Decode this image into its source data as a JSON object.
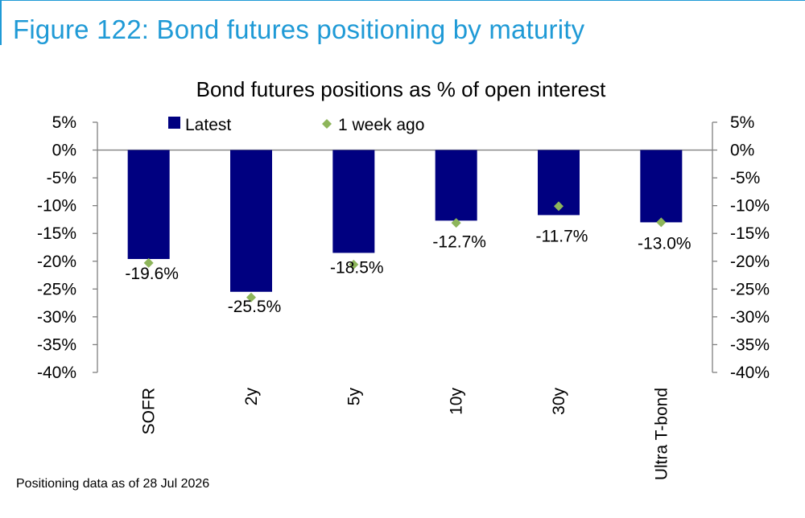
{
  "figure_title": "Figure 122: Bond futures positioning by maturity",
  "footnote": "Positioning data as of 28 Jul 2026",
  "colors": {
    "accent": "#1f9ad6",
    "latest": "#000080",
    "week_ago": "#8db55a"
  },
  "chart_data": {
    "type": "bar",
    "title": "Bond futures positions as % of open interest",
    "categories": [
      "SOFR",
      "2y",
      "5y",
      "10y",
      "30y",
      "Ultra T-bond"
    ],
    "series": [
      {
        "name": "Latest",
        "type": "bar",
        "values": [
          -19.6,
          -25.5,
          -18.5,
          -12.7,
          -11.7,
          -13.0
        ]
      },
      {
        "name": "1 week ago",
        "type": "scatter",
        "marker": "diamond",
        "values": [
          -20.3,
          -26.5,
          -20.6,
          -13.1,
          -10.1,
          -13.0
        ]
      }
    ],
    "data_labels": [
      "-19.6%",
      "-25.5%",
      "-18.5%",
      "-12.7%",
      "-11.7%",
      "-13.0%"
    ],
    "ylim": [
      -40,
      5
    ],
    "yticks": [
      5,
      0,
      -5,
      -10,
      -15,
      -20,
      -25,
      -30,
      -35,
      -40
    ],
    "ytick_labels": [
      "5%",
      "0%",
      "-5%",
      "-10%",
      "-15%",
      "-20%",
      "-25%",
      "-30%",
      "-35%",
      "-40%"
    ],
    "secondary_y_axis": true,
    "legend_position": "top",
    "grid": false,
    "x_tick_rotation": "vertical"
  }
}
